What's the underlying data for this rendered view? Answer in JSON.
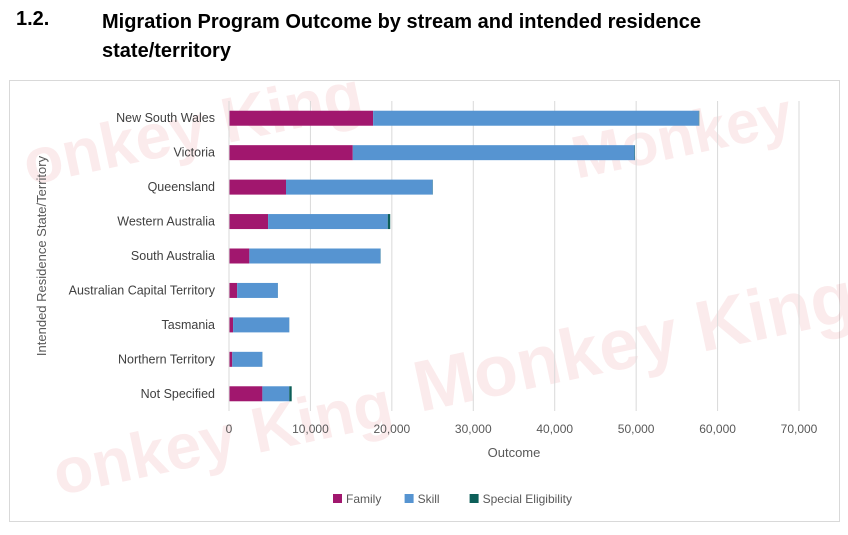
{
  "heading": {
    "number": "1.2.",
    "title": "Migration Program Outcome by stream and intended residence state/territory"
  },
  "chart_data": {
    "type": "bar",
    "orientation": "horizontal",
    "stacked": true,
    "categories": [
      "New South Wales",
      "Victoria",
      "Queensland",
      "Western Australia",
      "South Australia",
      "Australian Capital Territory",
      "Tasmania",
      "Northern Territory",
      "Not Specified"
    ],
    "series": [
      {
        "name": "Family",
        "color": "#a1176e",
        "values": [
          17700,
          15200,
          7000,
          4800,
          2500,
          1000,
          500,
          400,
          4100
        ]
      },
      {
        "name": "Skill",
        "color": "#5694d1",
        "values": [
          40000,
          34600,
          18000,
          14700,
          16100,
          5000,
          6900,
          3700,
          3300
        ]
      },
      {
        "name": "Special Eligibility",
        "color": "#0d5f59",
        "values": [
          50,
          50,
          30,
          300,
          20,
          10,
          10,
          10,
          300
        ]
      }
    ],
    "xlabel": "Outcome",
    "ylabel": "Intended Residence State/Territory",
    "xlim": [
      0,
      70000
    ],
    "xticks": [
      "0",
      "10,000",
      "20,000",
      "30,000",
      "40,000",
      "50,000",
      "60,000",
      "70,000"
    ],
    "grid": "vertical",
    "legend": "bottom"
  }
}
